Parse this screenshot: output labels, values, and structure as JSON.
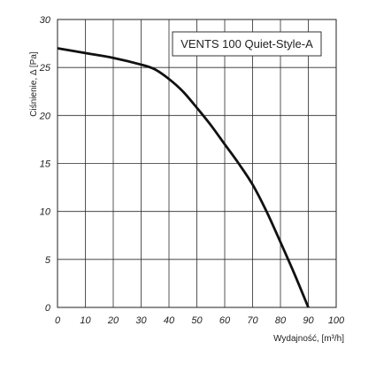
{
  "chart_data": {
    "type": "line",
    "title": "",
    "legend_title": "VENTS 100 Quiet-Style-A",
    "legend_position": "top-right",
    "xlabel": "Wydajność, [m³/h]",
    "ylabel": "Ciśnienie, Δ [Pa]",
    "xlim": [
      0,
      100
    ],
    "ylim": [
      0,
      30
    ],
    "x_ticks": [
      "0",
      "10",
      "20",
      "30",
      "40",
      "50",
      "60",
      "70",
      "80",
      "90",
      "100"
    ],
    "y_ticks": [
      "0",
      "5",
      "10",
      "15",
      "20",
      "25",
      "30"
    ],
    "grid": true,
    "series": [
      {
        "name": "VENTS 100 Quiet-Style-A",
        "color": "#111111",
        "x": [
          0,
          10,
          20,
          30,
          35,
          40,
          45,
          50,
          55,
          60,
          65,
          70,
          75,
          80,
          85,
          90
        ],
        "y": [
          27.0,
          26.5,
          26.0,
          25.3,
          24.8,
          23.8,
          22.5,
          20.8,
          19.0,
          17.0,
          15.0,
          12.8,
          10.0,
          6.8,
          3.5,
          0.0
        ]
      }
    ]
  }
}
